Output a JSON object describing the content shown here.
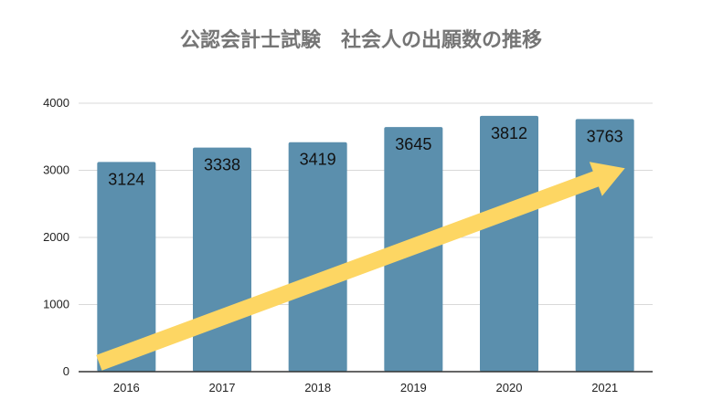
{
  "chart_data": {
    "type": "bar",
    "title": "公認会計士試験　社会人の出願数の推移",
    "xlabel": "",
    "ylabel": "",
    "categories": [
      "2016",
      "2017",
      "2018",
      "2019",
      "2020",
      "2021"
    ],
    "values": [
      3124,
      3338,
      3419,
      3645,
      3812,
      3763
    ],
    "ylim": [
      0,
      4000
    ],
    "yticks": [
      0,
      1000,
      2000,
      3000,
      4000
    ],
    "grid": true,
    "legend": "none",
    "colors": {
      "bar": "#5b8fad",
      "arrow": "#fdd663",
      "grid": "#d9d9d9",
      "axis": "#333333",
      "title": "#757575"
    },
    "annotations": [
      {
        "type": "arrow",
        "meaning": "upward trend",
        "from": {
          "category": "2016",
          "value": 200
        },
        "to": {
          "category": "2021",
          "value": 3100
        }
      }
    ]
  }
}
